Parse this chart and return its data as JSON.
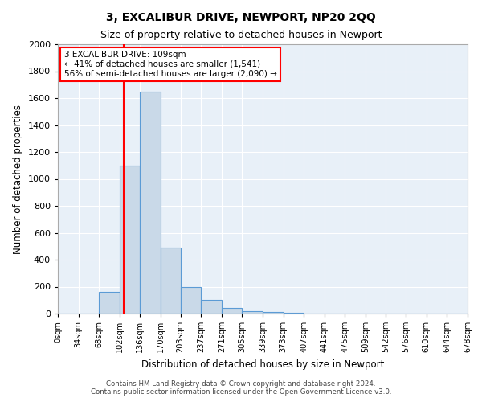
{
  "title": "3, EXCALIBUR DRIVE, NEWPORT, NP20 2QQ",
  "subtitle": "Size of property relative to detached houses in Newport",
  "xlabel": "Distribution of detached houses by size in Newport",
  "ylabel": "Number of detached properties",
  "bin_edges": [
    0,
    34,
    68,
    102,
    136,
    170,
    203,
    237,
    271,
    305,
    339,
    373,
    407,
    441,
    475,
    509,
    542,
    576,
    610,
    644,
    678
  ],
  "bar_heights": [
    0,
    0,
    160,
    1100,
    1650,
    490,
    200,
    100,
    40,
    20,
    10,
    5,
    2,
    0,
    0,
    0,
    0,
    0,
    0,
    0
  ],
  "bar_color": "#c9d9e8",
  "bar_edge_color": "#5b9bd5",
  "red_line_x": 109,
  "annotation_text": "3 EXCALIBUR DRIVE: 109sqm\n← 41% of detached houses are smaller (1,541)\n56% of semi-detached houses are larger (2,090) →",
  "annotation_box_color": "white",
  "annotation_box_edge_color": "red",
  "ylim": [
    0,
    2000
  ],
  "yticks": [
    0,
    200,
    400,
    600,
    800,
    1000,
    1200,
    1400,
    1600,
    1800,
    2000
  ],
  "tick_labels": [
    "0sqm",
    "34sqm",
    "68sqm",
    "102sqm",
    "136sqm",
    "170sqm",
    "203sqm",
    "237sqm",
    "271sqm",
    "305sqm",
    "339sqm",
    "373sqm",
    "407sqm",
    "441sqm",
    "475sqm",
    "509sqm",
    "542sqm",
    "576sqm",
    "610sqm",
    "644sqm",
    "678sqm"
  ],
  "footer_line1": "Contains HM Land Registry data © Crown copyright and database right 2024.",
  "footer_line2": "Contains public sector information licensed under the Open Government Licence v3.0.",
  "bg_color": "#e8f0f8"
}
